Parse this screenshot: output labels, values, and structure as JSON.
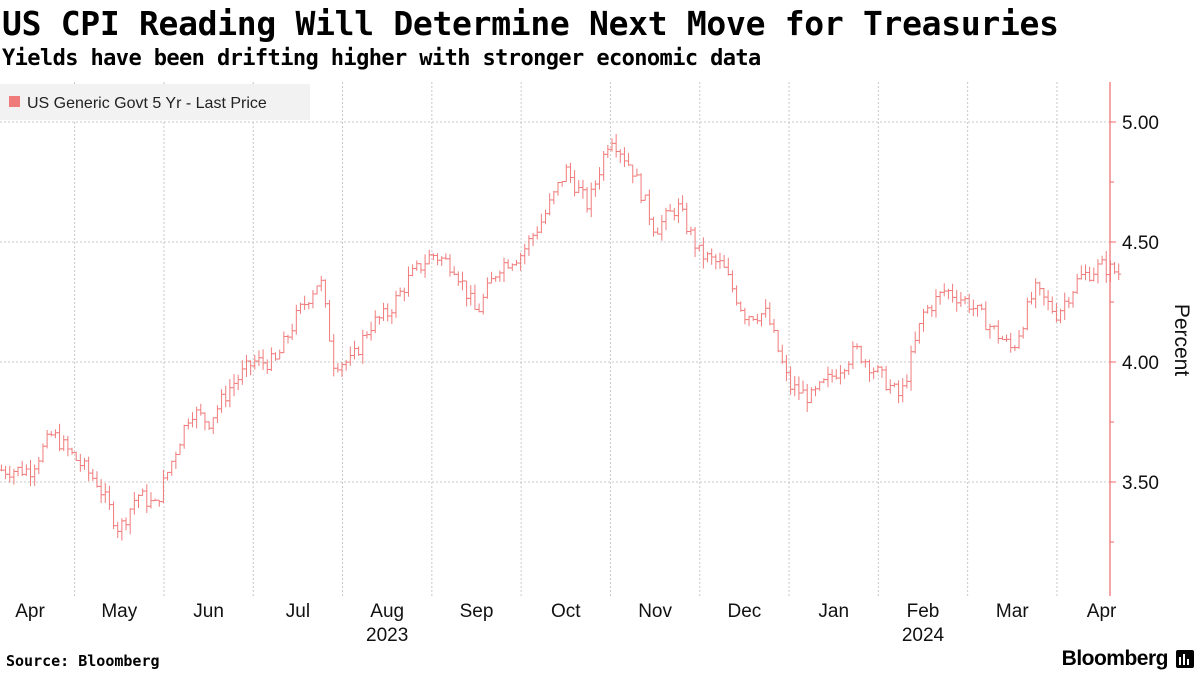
{
  "header": {
    "title": "US CPI Reading Will Determine Next Move for Treasuries",
    "subtitle": "Yields have been drifting higher with stronger economic data"
  },
  "footer": {
    "source": "Source: Bloomberg",
    "brand": "Bloomberg"
  },
  "colors": {
    "series": "#f07b7b",
    "axis": "#f06a6a",
    "grid": "#c8c8c8",
    "legend_bg": "#f2f2f2"
  },
  "chart_data": {
    "type": "line",
    "style": "ohlc-bars",
    "title": "US CPI Reading Will Determine Next Move for Treasuries",
    "subtitle": "Yields have been drifting higher with stronger economic data",
    "ylabel": "Percent",
    "xlabel": "",
    "y_axis_side": "right",
    "ylim": [
      3.0,
      5.15
    ],
    "yticks": [
      3.5,
      4.0,
      4.5,
      5.0
    ],
    "ytick_labels": [
      "3.50",
      "4.00",
      "4.50",
      "5.00"
    ],
    "xticks": [
      "Apr",
      "May",
      "Jun",
      "Jul",
      "Aug",
      "Sep",
      "Oct",
      "Nov",
      "Dec",
      "Jan",
      "Feb",
      "Mar",
      "Apr"
    ],
    "year_labels": [
      {
        "label": "2023",
        "month_index": 4
      },
      {
        "label": "2024",
        "month_index": 10
      }
    ],
    "grid": true,
    "legend": {
      "position": "top-left",
      "entries": [
        "US Generic Govt 5 Yr - Last Price"
      ]
    },
    "series": [
      {
        "name": "US Generic Govt 5 Yr - Last Price",
        "x_months": [
          0,
          0.25,
          0.5,
          0.75,
          1.0,
          1.2,
          1.4,
          1.6,
          1.8,
          2.0,
          2.25,
          2.5,
          2.75,
          3.0,
          3.25,
          3.4,
          3.6,
          3.8,
          4.0,
          4.25,
          4.5,
          4.75,
          5.0,
          5.25,
          5.5,
          5.75,
          6.0,
          6.25,
          6.5,
          6.75,
          7.0,
          7.25,
          7.5,
          7.75,
          8.0,
          8.25,
          8.5,
          8.75,
          9.0,
          9.25,
          9.5,
          9.75,
          10.0,
          10.25,
          10.5,
          10.75,
          11.0,
          11.25,
          11.5,
          11.75,
          12.0,
          12.2
        ],
        "values": [
          3.55,
          3.7,
          3.6,
          3.5,
          3.3,
          3.45,
          3.4,
          3.6,
          3.8,
          3.75,
          3.9,
          4.0,
          4.0,
          4.2,
          4.35,
          4.0,
          4.0,
          4.15,
          4.2,
          4.35,
          4.45,
          4.4,
          4.2,
          4.4,
          4.45,
          4.6,
          4.8,
          4.65,
          4.95,
          4.8,
          4.55,
          4.65,
          4.45,
          4.4,
          4.2,
          4.2,
          3.9,
          3.85,
          3.95,
          4.05,
          3.95,
          3.85,
          4.2,
          4.3,
          4.25,
          4.15,
          4.05,
          4.3,
          4.2,
          4.35,
          4.4,
          4.37
        ]
      }
    ]
  }
}
